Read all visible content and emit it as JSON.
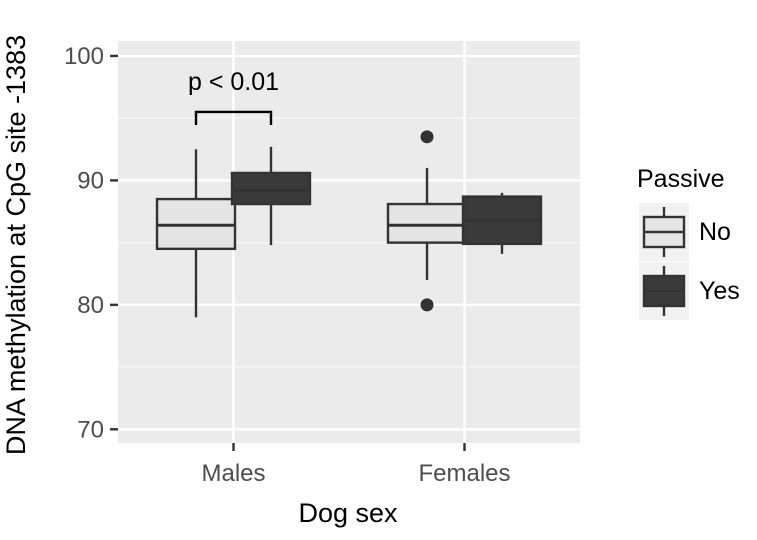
{
  "chart_data": {
    "type": "box",
    "xlabel": "Dog sex",
    "ylabel": "DNA methylation at CpG site -1383",
    "categories": [
      "Males",
      "Females"
    ],
    "ylim": [
      68.9,
      101.2
    ],
    "yticks": [
      70,
      80,
      90,
      100
    ],
    "grid": true,
    "legend": {
      "title": "Passive",
      "position": "right",
      "entries": [
        {
          "label": "No",
          "color": "#e5e5e5"
        },
        {
          "label": "Yes",
          "color": "#3a3a3a"
        }
      ]
    },
    "series": [
      {
        "name": "No",
        "fill": "#e5e5e5",
        "boxes": [
          {
            "category": "Males",
            "lower_whisker": 79.0,
            "q1": 84.5,
            "median": 86.4,
            "q3": 88.5,
            "upper_whisker": 92.5,
            "outliers": []
          },
          {
            "category": "Females",
            "lower_whisker": 82.0,
            "q1": 85.0,
            "median": 86.4,
            "q3": 88.1,
            "upper_whisker": 91.0,
            "outliers": [
              93.5,
              80.0
            ]
          }
        ]
      },
      {
        "name": "Yes",
        "fill": "#3a3a3a",
        "boxes": [
          {
            "category": "Males",
            "lower_whisker": 84.8,
            "q1": 88.1,
            "median": 89.2,
            "q3": 90.6,
            "upper_whisker": 92.7,
            "outliers": []
          },
          {
            "category": "Females",
            "lower_whisker": 84.1,
            "q1": 84.9,
            "median": 86.8,
            "q3": 88.7,
            "upper_whisker": 89.0,
            "outliers": []
          }
        ]
      }
    ],
    "annotations": [
      {
        "text": "p < 0.01",
        "category": "Males",
        "y": 95.5
      }
    ]
  }
}
